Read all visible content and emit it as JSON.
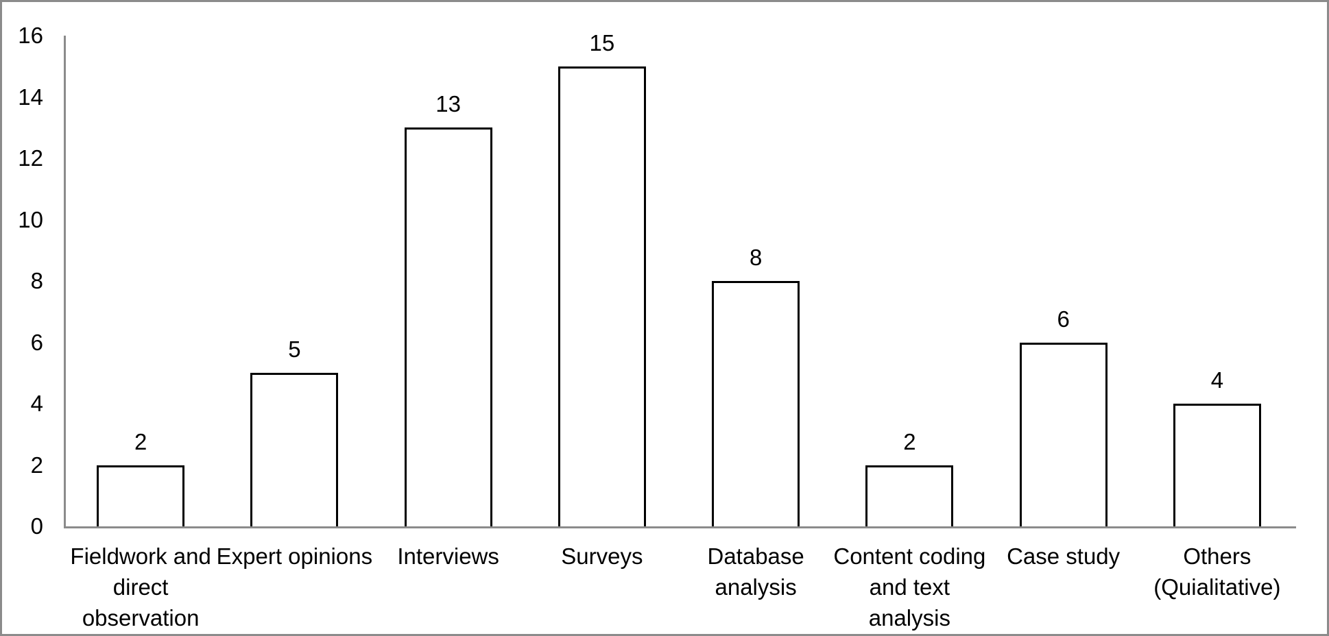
{
  "chart_data": {
    "type": "bar",
    "title": "",
    "xlabel": "",
    "ylabel": "",
    "categories": [
      "Fieldwork and\ndirect\nobservation",
      "Expert opinions",
      "Interviews",
      "Surveys",
      "Database\nanalysis",
      "Content coding\nand text\nanalysis",
      "Case study",
      "Others\n(Quialitative)"
    ],
    "values": [
      2,
      5,
      13,
      15,
      8,
      2,
      6,
      4
    ],
    "y_ticks": [
      0,
      2,
      4,
      6,
      8,
      10,
      12,
      14,
      16
    ],
    "ylim": [
      0,
      16
    ],
    "grid": false,
    "legend_position": "none",
    "bar_fill": "#ffffff",
    "bar_border_color": "#000000",
    "axis_color": "#8b8b8b",
    "text_color": "#000000",
    "frame_border_color": "#8b8b8b"
  }
}
